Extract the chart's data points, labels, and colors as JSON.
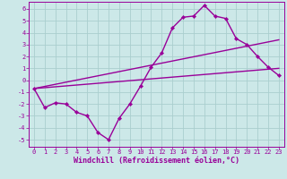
{
  "xlabel": "Windchill (Refroidissement éolien,°C)",
  "background_color": "#cce8e8",
  "grid_color": "#aacece",
  "line_color": "#990099",
  "xlim": [
    -0.5,
    23.5
  ],
  "ylim": [
    -5.6,
    6.6
  ],
  "xticks": [
    0,
    1,
    2,
    3,
    4,
    5,
    6,
    7,
    8,
    9,
    10,
    11,
    12,
    13,
    14,
    15,
    16,
    17,
    18,
    19,
    20,
    21,
    22,
    23
  ],
  "yticks": [
    -5,
    -4,
    -3,
    -2,
    -1,
    0,
    1,
    2,
    3,
    4,
    5,
    6
  ],
  "line1_x": [
    0,
    1,
    2,
    3,
    4,
    5,
    6,
    7,
    8,
    9,
    10,
    11,
    12,
    13,
    14,
    15,
    16,
    17,
    18,
    19,
    20,
    21,
    22,
    23
  ],
  "line1_y": [
    -0.7,
    -2.3,
    -1.9,
    -2.0,
    -2.7,
    -3.0,
    -4.4,
    -5.0,
    -3.2,
    -2.0,
    -0.5,
    1.1,
    2.3,
    4.4,
    5.3,
    5.4,
    6.3,
    5.4,
    5.2,
    3.5,
    3.0,
    2.0,
    1.1,
    0.4
  ],
  "line2_x": [
    0,
    23
  ],
  "line2_y": [
    -0.7,
    3.4
  ],
  "line3_x": [
    0,
    23
  ],
  "line3_y": [
    -0.7,
    1.0
  ],
  "linewidth": 1.0,
  "tick_fontsize": 5.0,
  "xlabel_fontsize": 6.0
}
